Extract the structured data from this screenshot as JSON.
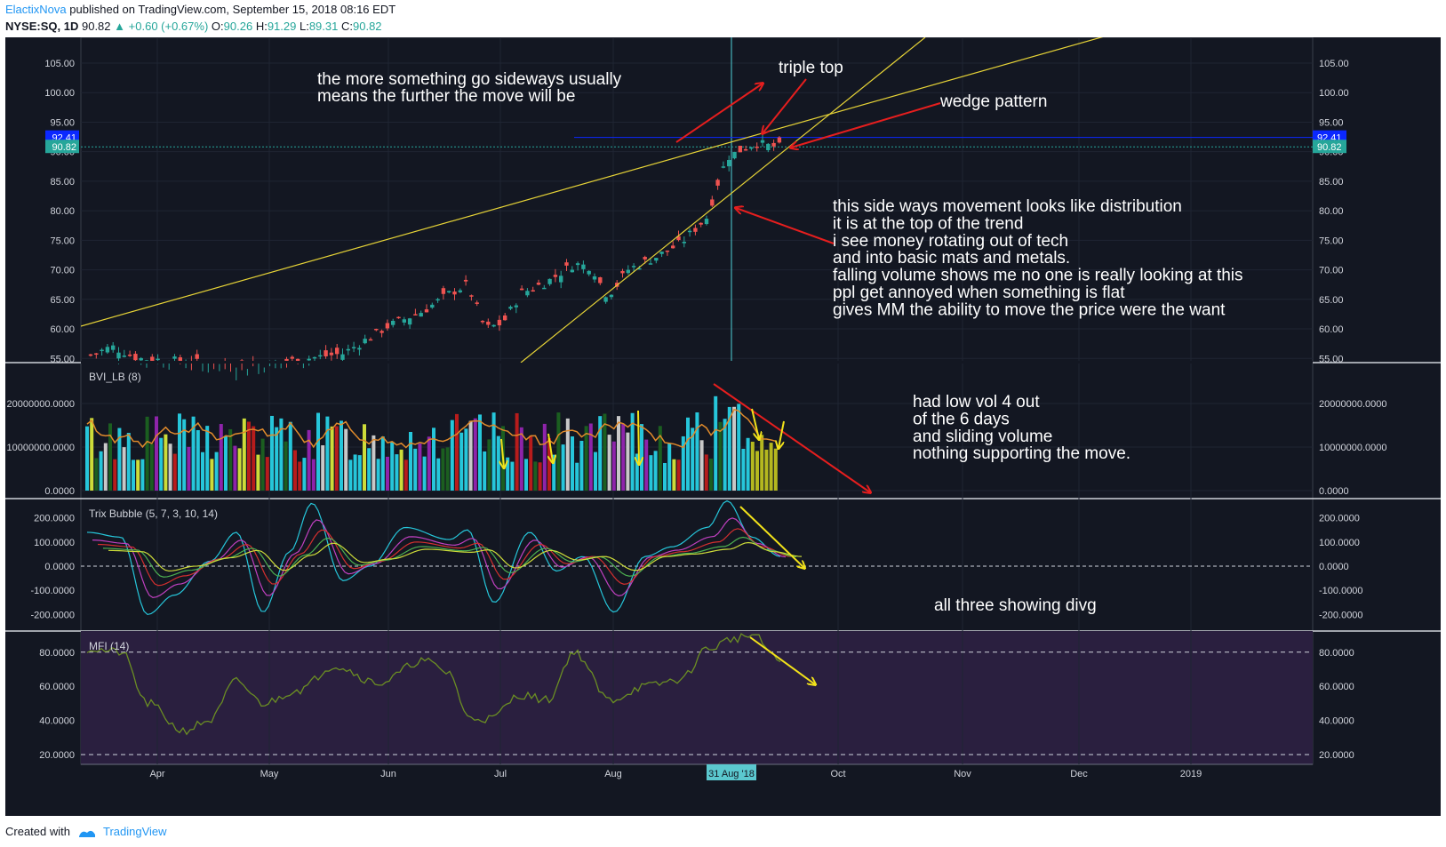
{
  "header": {
    "author": "ElactixNova",
    "published": "published on TradingView.com, September 15, 2018 08:16 EDT",
    "symbol": "NYSE:SQ, 1D",
    "last": "90.82",
    "change": "+0.60 (+0.67%)",
    "o_label": "O:",
    "o_value": "90.26",
    "h_label": "H:",
    "h_value": "91.29",
    "l_label": "L:",
    "l_value": "89.31",
    "c_label": "C:",
    "c_value": "90.82"
  },
  "footer": {
    "created": "Created with",
    "brand": "TradingView"
  },
  "colors": {
    "bg": "#131722",
    "up": "#26a69a",
    "down": "#ef5350",
    "annot": "#ffffff",
    "trend": "#e6d337",
    "arrow_red": "#e61e1e",
    "arrow_yellow": "#f2e21a"
  },
  "chart_data": [
    {
      "type": "candlestick",
      "name": "price",
      "ylim": [
        55,
        110
      ],
      "y_ticks": [
        "105.00",
        "100.00",
        "95.00",
        "90.00",
        "85.00",
        "80.00",
        "75.00",
        "70.00",
        "65.00",
        "60.00",
        "55.00"
      ],
      "x_ticks": [
        "Apr",
        "May",
        "Jun",
        "Jul",
        "Aug",
        "Oct",
        "Nov",
        "Dec",
        "2019"
      ],
      "crosshair_label": "31 Aug '18",
      "price_tags": [
        {
          "label": "92.41",
          "color": "#0b28ff"
        },
        {
          "label": "90.82",
          "color": "#26a69a"
        }
      ],
      "close_points": [
        [
          "Apr",
          55.0
        ],
        [
          "May",
          54.0
        ],
        [
          "May (late)",
          55.5
        ],
        [
          "Jun",
          60.5
        ],
        [
          "Jun (mid)",
          64.0
        ],
        [
          "Jun (late)",
          67.5
        ],
        [
          "Jul",
          60.0
        ],
        [
          "Jul (mid)",
          68.0
        ],
        [
          "Jul (late)",
          71.0
        ],
        [
          "Aug",
          66.0
        ],
        [
          "Aug (mid)",
          75.0
        ],
        [
          "Aug (late)",
          80.5
        ],
        [
          "31 Aug '18",
          91.0
        ],
        [
          "Sep",
          90.82
        ]
      ]
    },
    {
      "type": "bar",
      "name": "BVI_LB (8)",
      "ylim": [
        0,
        27000000
      ],
      "y_ticks": [
        "20000000.0000",
        "10000000.0000",
        "0.0000"
      ]
    },
    {
      "type": "line",
      "name": "Trix Bubble (5, 7, 3, 10, 14)",
      "ylim": [
        -250,
        270
      ],
      "y_ticks": [
        "200.0000",
        "100.0000",
        "0.0000",
        "-100.0000",
        "-200.0000"
      ]
    },
    {
      "type": "line",
      "name": "MFI (14)",
      "ylim": [
        12,
        92
      ],
      "y_ticks": [
        "80.0000",
        "60.0000",
        "40.0000",
        "20.0000"
      ]
    }
  ],
  "annotations": {
    "sideways": [
      "the more something go sideways  usually",
      "means the further the move will be"
    ],
    "triple_top": "triple top",
    "wedge": "wedge pattern",
    "distribution": [
      "this side ways movement looks like distribution",
      "it is at the top of the trend",
      "i see money rotating out of tech",
      "and into basic mats and metals.",
      "falling volume shows me no one is really looking at this",
      "ppl get annoyed when something is flat",
      "gives MM the ability to move the price were the want"
    ],
    "volume": [
      "had low vol 4 out",
      " of the 6 days",
      "and sliding volume",
      "nothing supporting the move."
    ],
    "divergence": "all three showing divg"
  }
}
